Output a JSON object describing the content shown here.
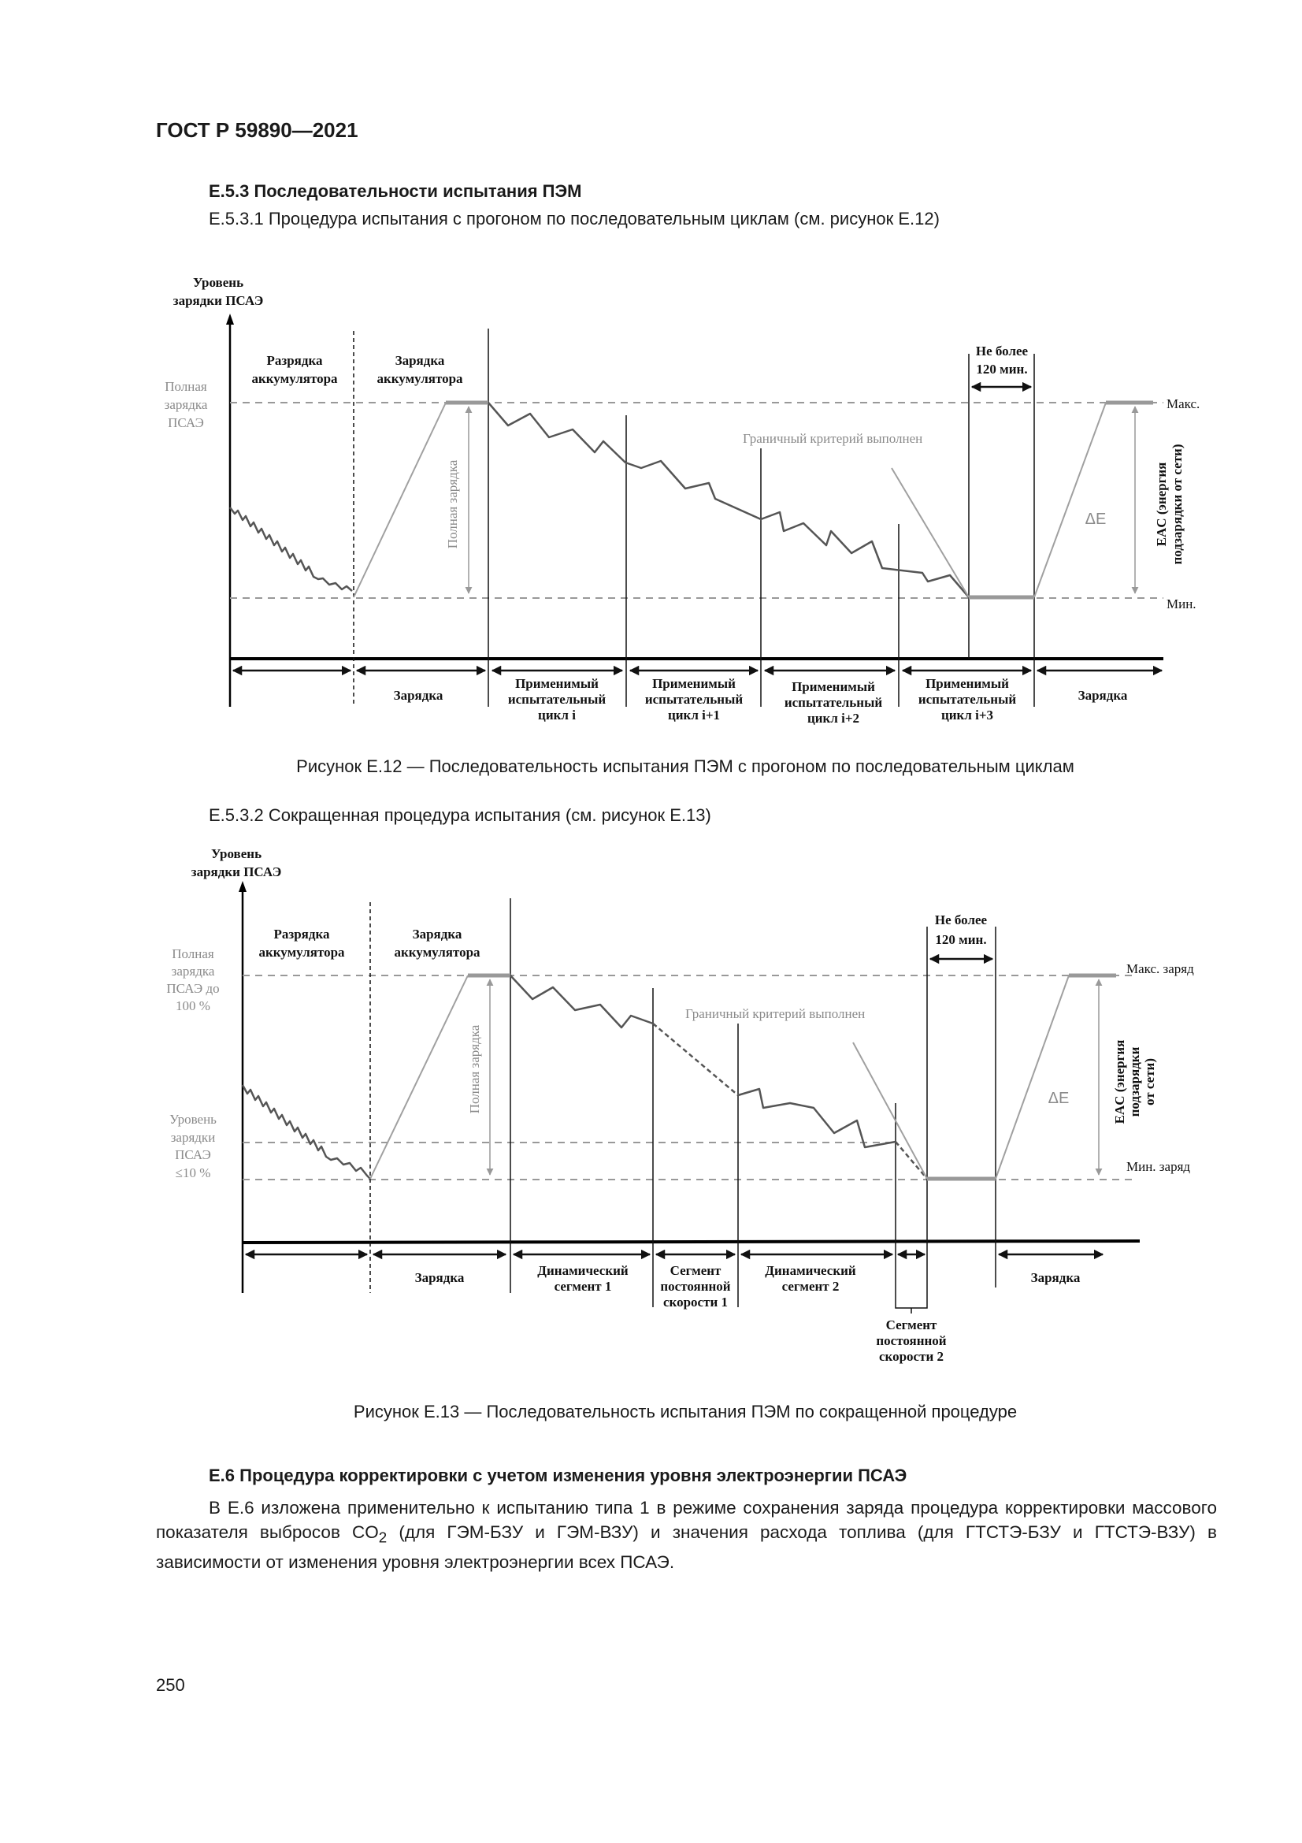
{
  "header": {
    "doc_id": "ГОСТ Р 59890—2021"
  },
  "section_e53": {
    "heading": "Е.5.3 Последовательности испытания ПЭМ",
    "sub1": "Е.5.3.1 Процедура испытания с прогоном по последовательным циклам (см. рисунок Е.12)",
    "sub2": "Е.5.3.2 Сокращенная процедура испытания (см. рисунок Е.13)"
  },
  "fig12": {
    "caption": "Рисунок Е.12 — Последовательность испытания ПЭМ с прогоном по последовательным циклам",
    "y_axis": [
      "Уровень",
      "зарядки ПСАЭ"
    ],
    "full_charge_label": [
      "Полная",
      "зарядка",
      "ПСАЭ"
    ],
    "discharge": [
      "Разрядка",
      "аккумулятора"
    ],
    "charge": [
      "Зарядка",
      "аккумулятора"
    ],
    "full_charge_vertical": "Полная зарядка",
    "boundary": "Граничный критерий выполнен",
    "limit": [
      "Не более",
      "120 мин."
    ],
    "max": "Макс.",
    "min": "Мин.",
    "delta_e": "ΔE",
    "eac": [
      "EAC (энергия",
      "подзарядки от сети)"
    ],
    "segments": {
      "charging": "Зарядка",
      "cycle_i": [
        "Применимый",
        "испытательный",
        "цикл i"
      ],
      "cycle_i1": [
        "Применимый",
        "испытательный",
        "цикл i+1"
      ],
      "cycle_i2": [
        "Применимый",
        "испытательный",
        "цикл i+2"
      ],
      "cycle_i3": [
        "Применимый",
        "испытательный",
        "цикл i+3"
      ],
      "charging_end": "Зарядка"
    }
  },
  "fig13": {
    "caption": "Рисунок Е.13 — Последовательность испытания ПЭМ по сокращенной процедуре",
    "y_axis": [
      "Уровень",
      "зарядки ПСАЭ"
    ],
    "full_charge_label": [
      "Полная",
      "зарядка",
      "ПСАЭ до",
      "100 %"
    ],
    "low_charge_label": [
      "Уровень",
      "зарядки",
      "ПСАЭ",
      "≤10 %"
    ],
    "discharge": [
      "Разрядка",
      "аккумулятора"
    ],
    "charge": [
      "Зарядка",
      "аккумулятора"
    ],
    "full_charge_vertical": "Полная зарядка",
    "boundary": "Граничный критерий выполнен",
    "limit": [
      "Не более",
      "120 мин."
    ],
    "max": "Макс. заряд",
    "min": "Мин. заряд",
    "delta_e": "ΔE",
    "eac": [
      "EAC (энергия",
      "подзарядки",
      "от сети)"
    ],
    "segments": {
      "charging": "Зарядка",
      "dynamic1": [
        "Динамический",
        "сегмент 1"
      ],
      "const1": [
        "Сегмент",
        "постоянной",
        "скорости 1"
      ],
      "dynamic2": [
        "Динамический",
        "сегмент 2"
      ],
      "const2": [
        "Сегмент",
        "постоянной",
        "скорости 2"
      ],
      "charging_end": "Зарядка"
    }
  },
  "section_e6": {
    "heading": "Е.6 Процедура корректировки с учетом изменения уровня электроэнергии ПСАЭ",
    "para_before": "В Е.6 изложена применительно к испытанию типа 1 в режиме сохранения заряда процедура корректировки массового показателя выбросов CO",
    "para_sub": "2",
    "para_after": " (для ГЭМ-БЗУ и ГЭМ-ВЗУ) и значения расхода топлива (для ГТСТЭ-БЗУ и ГТСТЭ-ВЗУ) в зависимости от изменения уровня электроэнергии всех ПСАЭ."
  },
  "footer": {
    "page_number": "250"
  }
}
